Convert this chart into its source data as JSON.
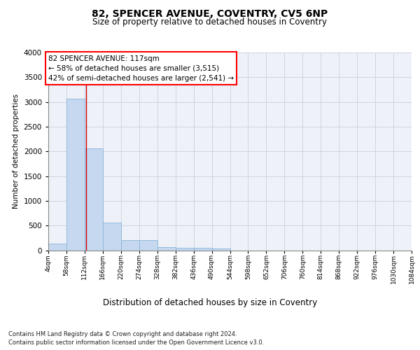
{
  "title1": "82, SPENCER AVENUE, COVENTRY, CV5 6NP",
  "title2": "Size of property relative to detached houses in Coventry",
  "xlabel": "Distribution of detached houses by size in Coventry",
  "ylabel": "Number of detached properties",
  "footnote1": "Contains HM Land Registry data © Crown copyright and database right 2024.",
  "footnote2": "Contains public sector information licensed under the Open Government Licence v3.0.",
  "bar_color": "#c5d8f0",
  "bar_edge_color": "#8ab4d8",
  "grid_color": "#c8d0e0",
  "annotation_text": "82 SPENCER AVENUE: 117sqm\n← 58% of detached houses are smaller (3,515)\n42% of semi-detached houses are larger (2,541) →",
  "vline_x": 117,
  "vline_color": "#cc0000",
  "bin_edges": [
    4,
    58,
    112,
    166,
    220,
    274,
    328,
    382,
    436,
    490,
    544,
    598,
    652,
    706,
    760,
    814,
    868,
    922,
    976,
    1030,
    1084
  ],
  "bar_heights": [
    140,
    3060,
    2060,
    560,
    200,
    200,
    70,
    50,
    50,
    40,
    0,
    0,
    0,
    0,
    0,
    0,
    0,
    0,
    0,
    0
  ],
  "ylim": [
    0,
    4000
  ],
  "yticks": [
    0,
    500,
    1000,
    1500,
    2000,
    2500,
    3000,
    3500,
    4000
  ],
  "bg_color": "#eef2f8",
  "fig_bg": "#ffffff"
}
